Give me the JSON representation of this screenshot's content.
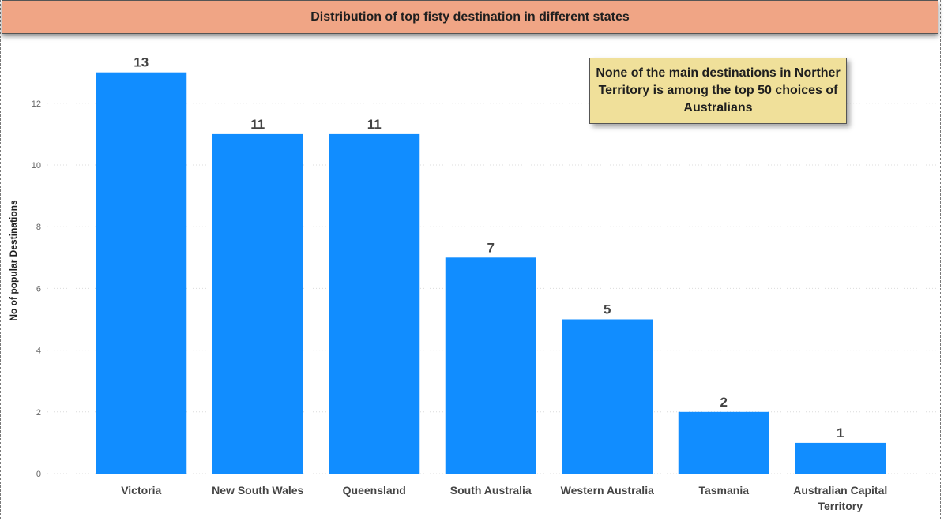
{
  "chart_data": {
    "type": "bar",
    "title": "Distribution of top fisty destination in different states",
    "xlabel": "",
    "ylabel": "No of popular Destinations",
    "categories": [
      "Victoria",
      "New South Wales",
      "Queensland",
      "South Australia",
      "Western Australia",
      "Tasmania",
      "Australian Capital Territory"
    ],
    "category_lines": [
      [
        "Victoria"
      ],
      [
        "New South Wales"
      ],
      [
        "Queensland"
      ],
      [
        "South Australia"
      ],
      [
        "Western Australia"
      ],
      [
        "Tasmania"
      ],
      [
        "Australian Capital",
        "Territory"
      ]
    ],
    "values": [
      13,
      11,
      11,
      7,
      5,
      2,
      1
    ],
    "ylim": [
      0,
      13
    ],
    "yticks": [
      0,
      2,
      4,
      6,
      8,
      10,
      12
    ],
    "grid": true,
    "bar_color": "#118dff",
    "annotation": "None of the main destinations in Norther Territory is  among the top 50 choices of Australians"
  }
}
